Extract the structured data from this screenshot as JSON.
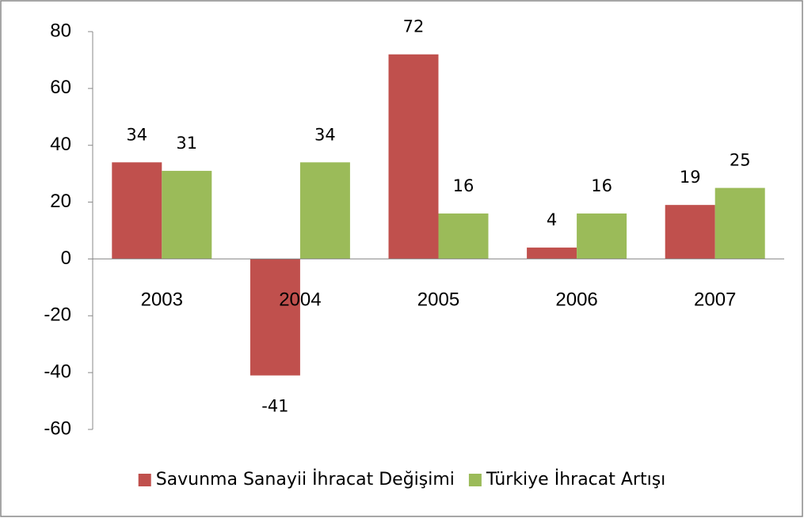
{
  "chart_data": {
    "type": "bar",
    "categories": [
      "2003",
      "2004",
      "2005",
      "2006",
      "2007"
    ],
    "series": [
      {
        "name": "Savunma Sanayii İhracat Değişimi",
        "color": "#c0504d",
        "values": [
          34,
          -41,
          72,
          4,
          19
        ]
      },
      {
        "name": "Türkiye İhracat Artışı",
        "color": "#9bbb59",
        "values": [
          31,
          34,
          16,
          16,
          25
        ]
      }
    ],
    "ylim": [
      -60,
      80
    ],
    "yticks": [
      -60,
      -40,
      -20,
      0,
      20,
      40,
      60,
      80
    ],
    "grid": false,
    "legend": "bottom"
  }
}
